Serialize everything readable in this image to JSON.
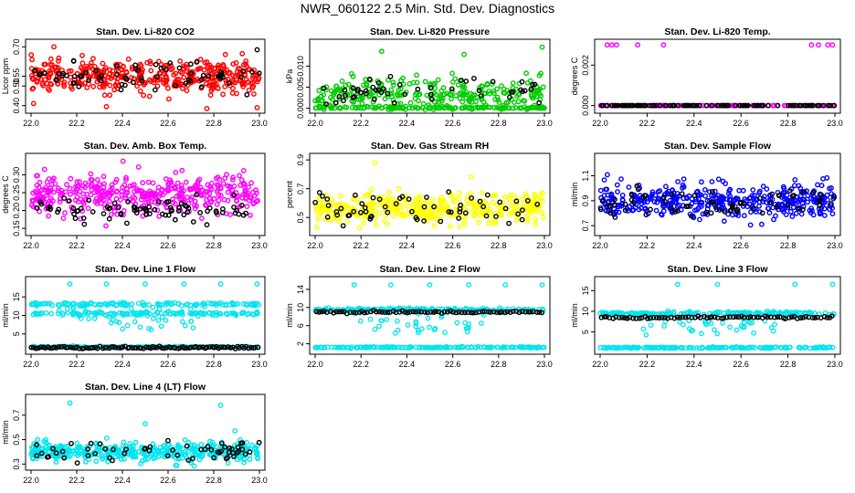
{
  "title": "NWR_060122  2.5 Min. Std. Dev. Diagnostics",
  "chart_data": [
    {
      "type": "scatter",
      "title": "Stan. Dev. Li-820 CO2",
      "ylabel": "Licor ppm",
      "xlim": [
        22.0,
        23.0
      ],
      "ylim": [
        0.38,
        0.72
      ],
      "xticks": [
        "22.0",
        "22.2",
        "22.4",
        "22.6",
        "22.8",
        "23.0"
      ],
      "yticks": [
        0.4,
        0.5,
        0.55,
        0.7
      ],
      "ytick_labels": [
        "0.40",
        "0.50",
        "0.55",
        "0.70"
      ],
      "color": "#ff0000",
      "main_center": 0.55,
      "main_spread": 0.04,
      "ref_center": 0.545,
      "ref_spread": 0.035,
      "n_main": 400,
      "n_ref": 70,
      "outliers": [
        [
          22.1,
          0.7
        ],
        [
          22.33,
          0.395
        ],
        [
          22.77,
          0.385
        ],
        [
          22.99,
          0.39
        ],
        [
          22.99,
          0.685
        ]
      ]
    },
    {
      "type": "scatter",
      "title": "Stan. Dev. Li-820 Pressure",
      "ylabel": "kPa",
      "xlim": [
        22.0,
        23.0
      ],
      "ylim": [
        -0.0003,
        0.0155
      ],
      "xticks": [
        "22.0",
        "22.2",
        "22.4",
        "22.6",
        "22.8",
        "23.0"
      ],
      "yticks": [
        0.0,
        0.005,
        0.01
      ],
      "ytick_labels": [
        "0.000",
        "0.005",
        "0.010"
      ],
      "color": "#00cc00",
      "main_center": 0.0035,
      "main_spread": 0.002,
      "ref_center": 0.004,
      "ref_spread": 0.0015,
      "n_main": 400,
      "n_ref": 50,
      "band_low": 0.0,
      "outliers": [
        [
          22.29,
          0.0135
        ],
        [
          22.65,
          0.0128
        ],
        [
          22.99,
          0.0145
        ]
      ]
    },
    {
      "type": "scatter",
      "title": "Stan. Dev. Li-820 Temp.",
      "ylabel": "degrees C",
      "xlim": [
        22.0,
        23.0
      ],
      "ylim": [
        -0.0002,
        0.0031
      ],
      "xticks": [
        "22.0",
        "22.2",
        "22.4",
        "22.6",
        "22.8",
        "23.0"
      ],
      "yticks": [
        0.0,
        0.002
      ],
      "ytick_labels": [
        "0.000",
        "0.002"
      ],
      "color": "#ff00ff",
      "main_center": 0.0,
      "main_spread": 0.0,
      "ref_center": 0.0,
      "ref_spread": 0.0,
      "n_main": 120,
      "n_ref": 120,
      "outliers": [
        [
          22.03,
          0.003
        ],
        [
          22.05,
          0.003
        ],
        [
          22.07,
          0.003
        ],
        [
          22.16,
          0.003
        ],
        [
          22.27,
          0.003
        ],
        [
          22.9,
          0.003
        ],
        [
          22.93,
          0.003
        ],
        [
          22.97,
          0.003
        ],
        [
          22.99,
          0.003
        ]
      ]
    },
    {
      "type": "scatter",
      "title": "Stan. Dev. Amb. Box Temp.",
      "ylabel": "degrees C",
      "xlim": [
        22.0,
        23.0
      ],
      "ylim": [
        0.14,
        0.35
      ],
      "xticks": [
        "22.0",
        "22.2",
        "22.4",
        "22.6",
        "22.8",
        "23.0"
      ],
      "yticks": [
        0.15,
        0.2,
        0.25,
        0.3
      ],
      "ytick_labels": [
        "0.15",
        "0.20",
        "0.25",
        "0.30"
      ],
      "color": "#ff00ff",
      "main_center": 0.245,
      "main_spread": 0.028,
      "ref_center": 0.2,
      "ref_spread": 0.015,
      "n_main": 400,
      "n_ref": 80,
      "outliers": []
    },
    {
      "type": "scatter",
      "title": "Stan. Dev. Gas Stream RH",
      "ylabel": "percent",
      "xlim": [
        22.0,
        23.0
      ],
      "ylim": [
        0.4,
        0.92
      ],
      "xticks": [
        "22.0",
        "22.2",
        "22.4",
        "22.6",
        "22.8",
        "23.0"
      ],
      "yticks": [
        0.5,
        0.7,
        0.9
      ],
      "ytick_labels": [
        "0.5",
        "0.7",
        "0.9"
      ],
      "color": "#ffff00",
      "main_center": 0.56,
      "main_spread": 0.05,
      "ref_center": 0.56,
      "ref_spread": 0.06,
      "n_main": 400,
      "n_ref": 60,
      "outliers": [
        [
          22.26,
          0.88
        ],
        [
          22.68,
          0.78
        ]
      ]
    },
    {
      "type": "scatter",
      "title": "Stan. Dev. Sample Flow",
      "ylabel": "ml/min",
      "xlim": [
        22.0,
        23.0
      ],
      "ylim": [
        0.65,
        1.25
      ],
      "xticks": [
        "22.0",
        "22.2",
        "22.4",
        "22.6",
        "22.8",
        "23.0"
      ],
      "yticks": [
        0.7,
        0.9,
        1.1
      ],
      "ytick_labels": [
        "0.7",
        "0.9",
        "1.1"
      ],
      "color": "#0000ff",
      "main_center": 0.9,
      "main_spread": 0.07,
      "ref_center": 0.88,
      "ref_spread": 0.06,
      "n_main": 400,
      "n_ref": 70,
      "outliers": []
    },
    {
      "type": "scatter",
      "title": "Stan. Dev. Line 1 Flow",
      "ylabel": "ml/min",
      "xlim": [
        22.0,
        23.0
      ],
      "ylim": [
        0.5,
        19.5
      ],
      "xticks": [
        "22.0",
        "22.2",
        "22.4",
        "22.6",
        "22.8",
        "23.0"
      ],
      "yticks": [
        5,
        10,
        15
      ],
      "ytick_labels": [
        "5",
        "10",
        "15"
      ],
      "color": "#00e5ee",
      "bands": [
        13.0,
        10.5,
        1.5
      ],
      "ref_level": 1.3,
      "n_main": 300,
      "n_ref": 100,
      "outliers": [
        [
          22.17,
          18.5
        ],
        [
          22.33,
          18.5
        ],
        [
          22.5,
          18.5
        ],
        [
          22.67,
          18.5
        ],
        [
          22.83,
          18.5
        ],
        [
          22.99,
          18.5
        ]
      ]
    },
    {
      "type": "scatter",
      "title": "Stan. Dev. Line 2 Flow",
      "ylabel": "ml/min",
      "xlim": [
        22.0,
        23.0
      ],
      "ylim": [
        0.5,
        16.0
      ],
      "xticks": [
        "22.0",
        "22.2",
        "22.4",
        "22.6",
        "22.8",
        "23.0"
      ],
      "yticks": [
        2,
        6,
        10,
        14
      ],
      "ytick_labels": [
        "2",
        "6",
        "10",
        "14"
      ],
      "color": "#00e5ee",
      "bands": [
        9.5,
        1.2
      ],
      "ref_level": 9.0,
      "n_main": 300,
      "n_ref": 80,
      "outliers": [
        [
          22.17,
          15
        ],
        [
          22.33,
          15
        ],
        [
          22.5,
          15
        ],
        [
          22.67,
          15
        ],
        [
          22.83,
          15
        ],
        [
          22.99,
          15
        ]
      ]
    },
    {
      "type": "scatter",
      "title": "Stan. Dev. Line 3 Flow",
      "ylabel": "ml/min",
      "xlim": [
        22.0,
        23.0
      ],
      "ylim": [
        0.5,
        17.5
      ],
      "xticks": [
        "22.0",
        "22.2",
        "22.4",
        "22.6",
        "22.8",
        "23.0"
      ],
      "yticks": [
        5,
        10,
        15
      ],
      "ytick_labels": [
        "5",
        "10",
        "15"
      ],
      "color": "#00e5ee",
      "bands": [
        9.5,
        1.2
      ],
      "ref_level": 8.5,
      "n_main": 300,
      "n_ref": 80,
      "outliers": [
        [
          22.33,
          16.5
        ],
        [
          22.5,
          16.5
        ],
        [
          22.83,
          16.5
        ],
        [
          22.99,
          16.5
        ]
      ]
    },
    {
      "type": "scatter",
      "title": "Stan. Dev. Line 4 (LT) Flow",
      "ylabel": "ml/min",
      "xlim": [
        22.0,
        23.0
      ],
      "ylim": [
        0.28,
        0.84
      ],
      "xticks": [
        "22.0",
        "22.2",
        "22.4",
        "22.6",
        "22.8",
        "23.0"
      ],
      "yticks": [
        0.3,
        0.5,
        0.7
      ],
      "ytick_labels": [
        "0.3",
        "0.5",
        "0.7"
      ],
      "color": "#00e5ee",
      "main_center": 0.4,
      "main_spread": 0.04,
      "ref_center": 0.4,
      "ref_spread": 0.04,
      "n_main": 400,
      "n_ref": 60,
      "outliers": [
        [
          22.17,
          0.8
        ],
        [
          22.5,
          0.63
        ],
        [
          22.83,
          0.78
        ]
      ]
    }
  ]
}
